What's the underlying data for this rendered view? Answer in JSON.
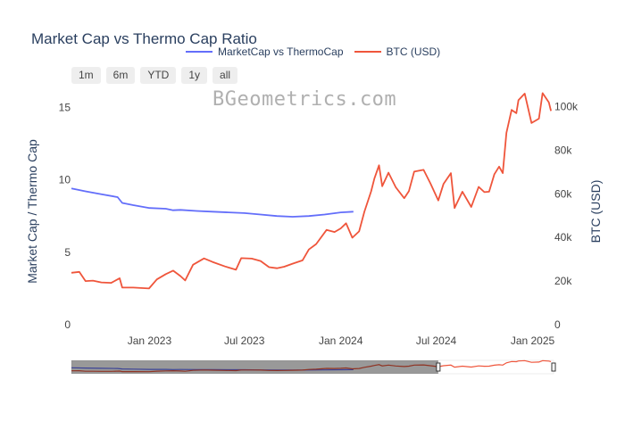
{
  "watermark": "BGeometrics.com",
  "range_buttons": [
    "1m",
    "6m",
    "YTD",
    "1y",
    "all"
  ],
  "colors": {
    "ratio": "#636efa",
    "btc": "#ef553b"
  },
  "chart_data": {
    "type": "line",
    "title": "Market Cap vs Thermo Cap Ratio",
    "ylabel": "Market Cap / Thermo Cap",
    "y2label": "BTC (USD)",
    "ylim": [
      0,
      16.25
    ],
    "y2lim": [
      0,
      108000
    ],
    "y_ticks": [
      0,
      5,
      10,
      15
    ],
    "y2_ticks": [
      0,
      20000,
      40000,
      60000,
      80000,
      100000
    ],
    "y2_tick_labels": [
      "0",
      "20k",
      "40k",
      "60k",
      "80k",
      "100k"
    ],
    "xlim": [
      "2022-08-05",
      "2025-02-10"
    ],
    "x_ticks": [
      "2023-01-01",
      "2023-07-01",
      "2024-01-01",
      "2024-07-01",
      "2025-01-01"
    ],
    "x_tick_labels": [
      "Jan 2023",
      "Jul 2023",
      "Jan 2024",
      "Jul 2024",
      "Jan 2025"
    ],
    "grid": false,
    "legend_position": "top",
    "series": [
      {
        "name": "MarketCap vs ThermoCap",
        "axis": "y",
        "x": [
          "2022-08-05",
          "2022-09-01",
          "2022-10-01",
          "2022-11-01",
          "2022-11-10",
          "2022-12-01",
          "2023-01-01",
          "2023-02-01",
          "2023-02-15",
          "2023-03-01",
          "2023-04-01",
          "2023-05-01",
          "2023-06-01",
          "2023-07-01",
          "2023-08-01",
          "2023-09-01",
          "2023-10-01",
          "2023-11-01",
          "2023-12-01",
          "2024-01-01",
          "2024-01-25"
        ],
        "values": [
          9.4,
          9.2,
          9.0,
          8.8,
          8.4,
          8.25,
          8.05,
          8.0,
          7.9,
          7.92,
          7.85,
          7.8,
          7.75,
          7.7,
          7.6,
          7.5,
          7.45,
          7.5,
          7.6,
          7.75,
          7.8
        ]
      },
      {
        "name": "BTC (USD)",
        "axis": "y2",
        "x": [
          "2022-08-05",
          "2022-08-20",
          "2022-09-01",
          "2022-09-15",
          "2022-10-01",
          "2022-10-20",
          "2022-11-05",
          "2022-11-10",
          "2022-12-01",
          "2022-12-31",
          "2023-01-15",
          "2023-02-01",
          "2023-02-15",
          "2023-03-01",
          "2023-03-10",
          "2023-03-25",
          "2023-04-15",
          "2023-05-01",
          "2023-05-25",
          "2023-06-15",
          "2023-06-25",
          "2023-07-15",
          "2023-08-01",
          "2023-08-17",
          "2023-09-01",
          "2023-09-15",
          "2023-10-01",
          "2023-10-20",
          "2023-11-01",
          "2023-11-15",
          "2023-12-05",
          "2023-12-20",
          "2024-01-01",
          "2024-01-11",
          "2024-01-23",
          "2024-02-05",
          "2024-02-15",
          "2024-02-28",
          "2024-03-05",
          "2024-03-14",
          "2024-03-20",
          "2024-04-01",
          "2024-04-15",
          "2024-05-01",
          "2024-05-10",
          "2024-05-20",
          "2024-06-07",
          "2024-06-20",
          "2024-07-05",
          "2024-07-15",
          "2024-07-29",
          "2024-08-05",
          "2024-08-20",
          "2024-09-06",
          "2024-09-20",
          "2024-10-01",
          "2024-10-10",
          "2024-10-20",
          "2024-10-29",
          "2024-11-05",
          "2024-11-12",
          "2024-11-22",
          "2024-12-01",
          "2024-12-05",
          "2024-12-17",
          "2024-12-30",
          "2025-01-13",
          "2025-01-20",
          "2025-02-01",
          "2025-02-05"
        ],
        "values": [
          23800,
          24200,
          20000,
          20200,
          19400,
          19200,
          21300,
          17000,
          17000,
          16600,
          20800,
          23200,
          24800,
          22300,
          20300,
          27500,
          30400,
          28800,
          26700,
          25200,
          30500,
          30300,
          29200,
          26400,
          25900,
          26600,
          28000,
          29500,
          34500,
          37000,
          43500,
          42500,
          44200,
          46500,
          39900,
          42800,
          51800,
          61200,
          67000,
          73100,
          63500,
          69700,
          63000,
          58000,
          61300,
          70200,
          71000,
          64800,
          57000,
          64500,
          69500,
          53500,
          61000,
          54000,
          63200,
          60800,
          61000,
          69000,
          72500,
          69500,
          88000,
          98500,
          97000,
          103000,
          106000,
          92500,
          94500,
          106200,
          102000,
          98000
        ]
      }
    ]
  }
}
